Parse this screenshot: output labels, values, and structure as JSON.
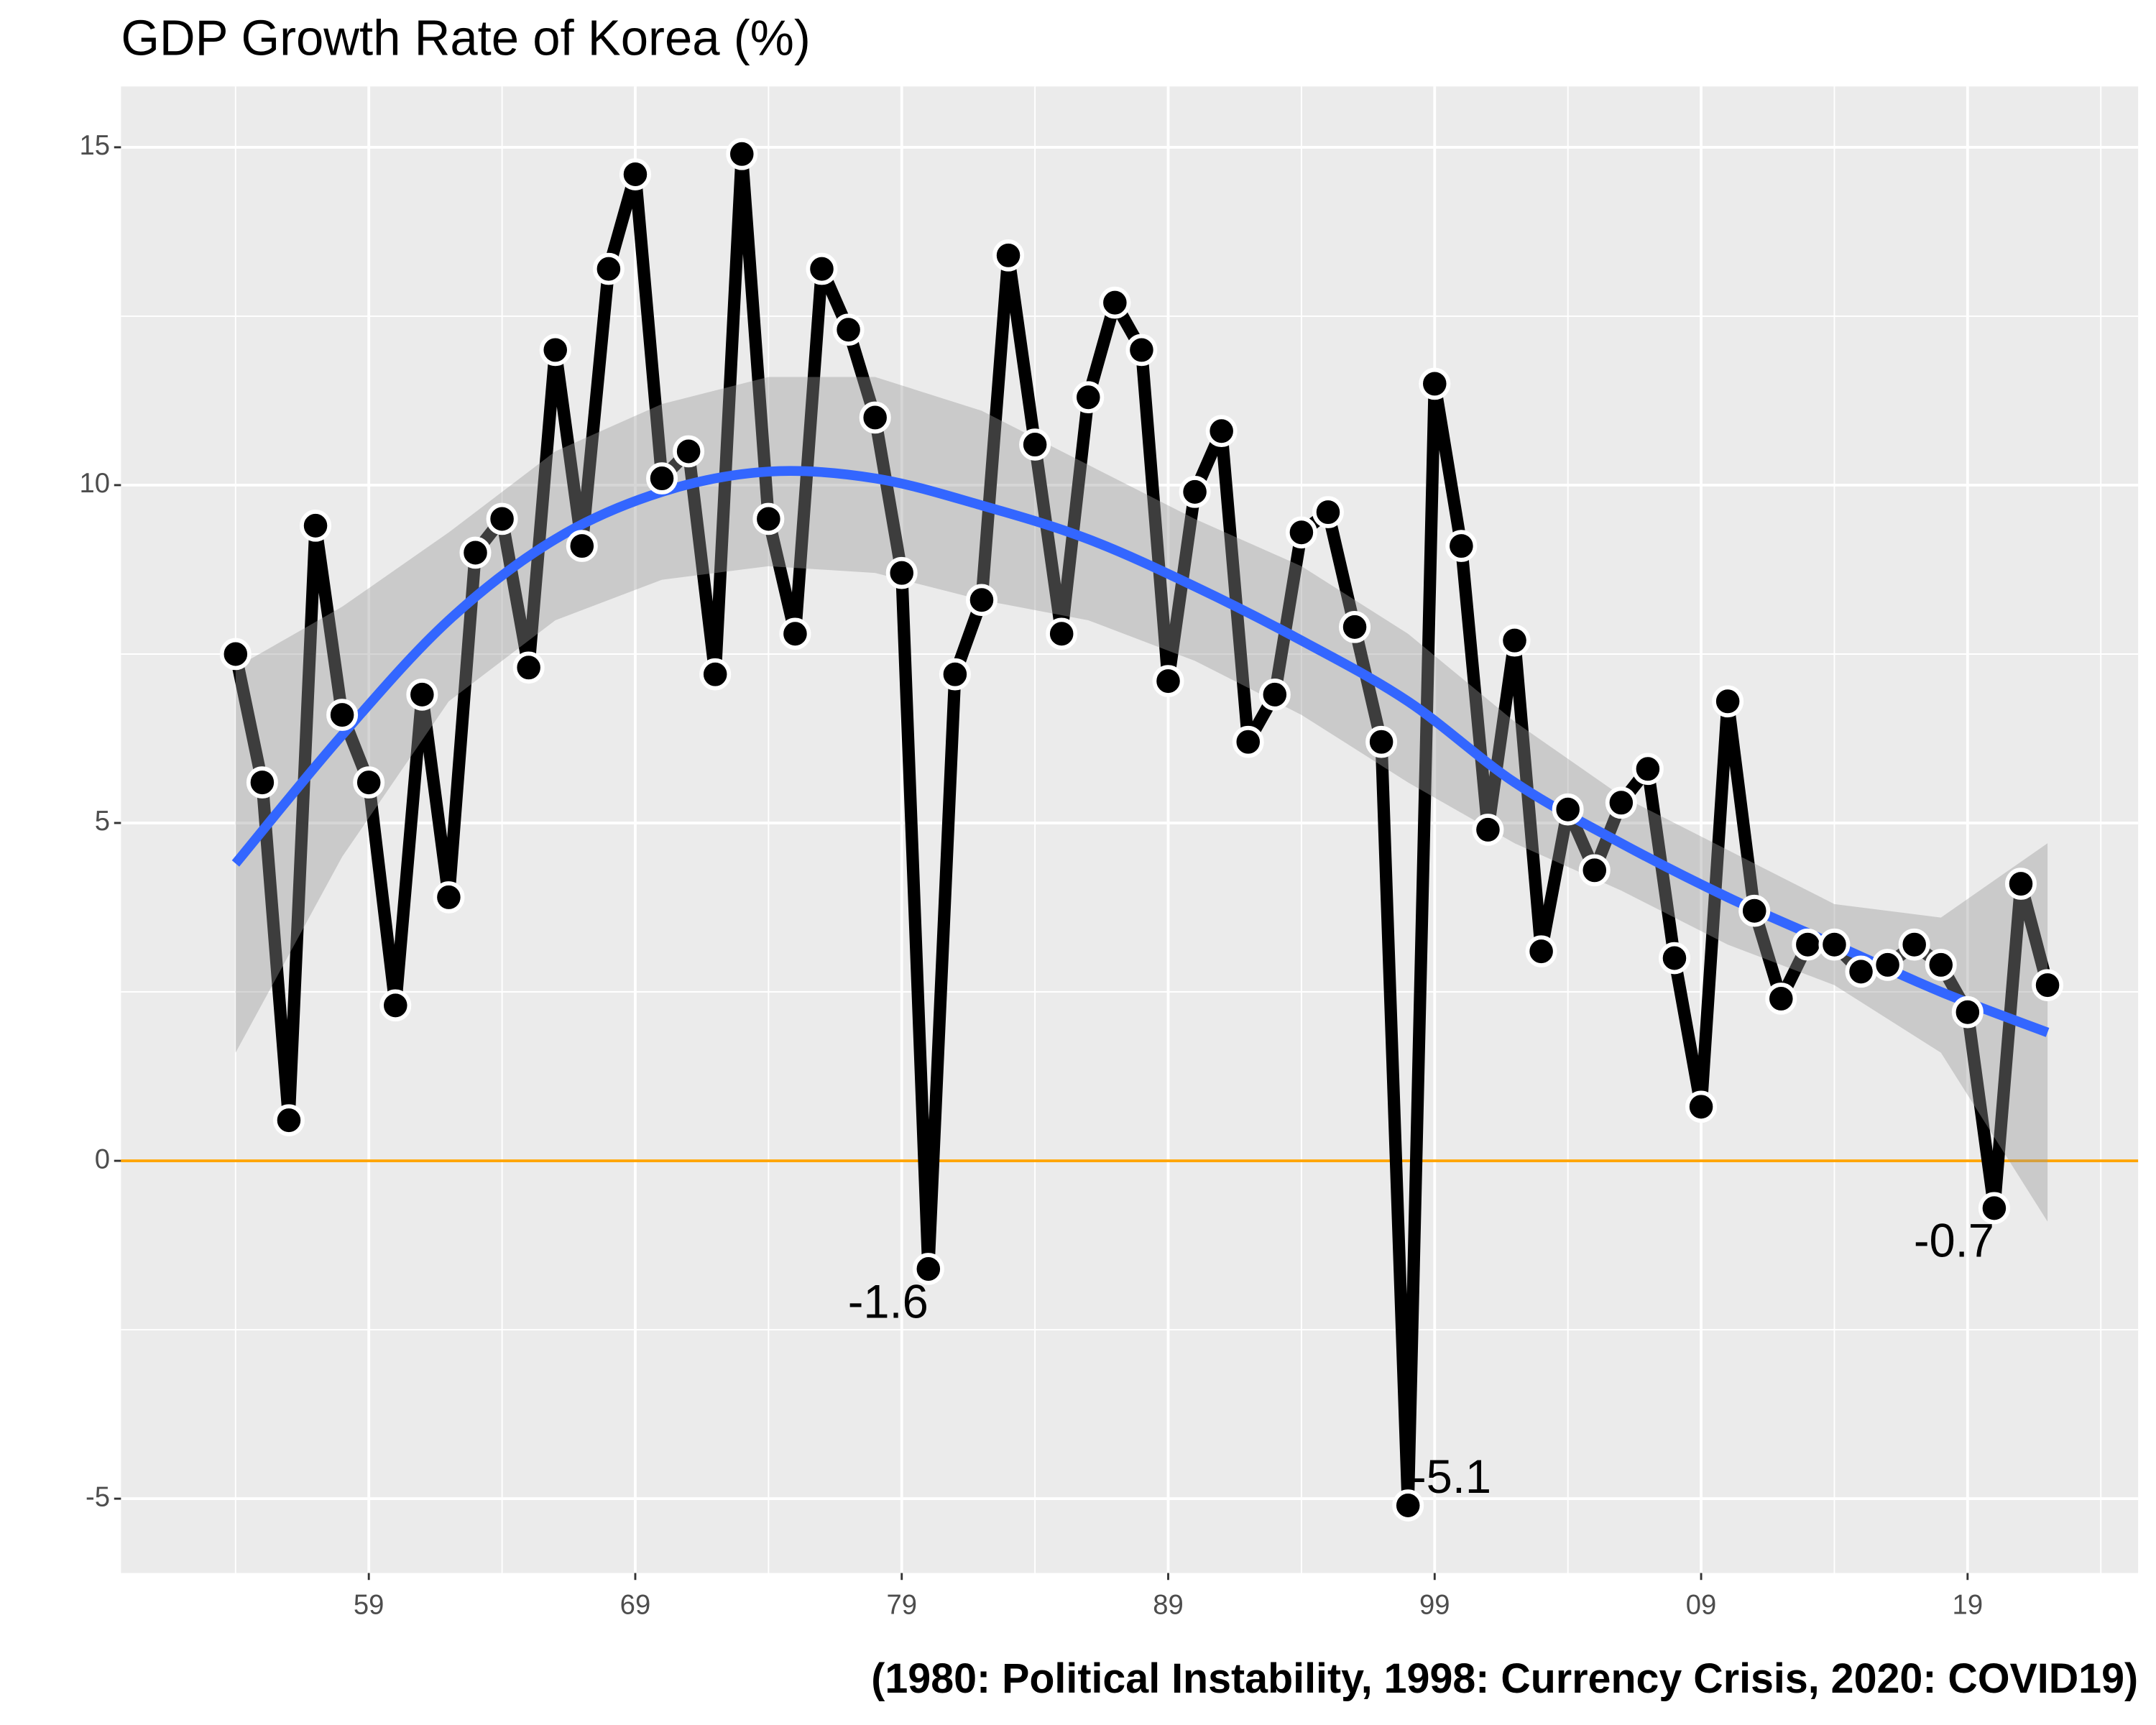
{
  "chart_data": {
    "type": "line",
    "title": "GDP Growth Rate of Korea (%)",
    "caption": "(1980: Political Instability, 1998: Currency Crisis, 2020: COVID19)",
    "x": [
      1954,
      1955,
      1956,
      1957,
      1958,
      1959,
      1960,
      1961,
      1962,
      1963,
      1964,
      1965,
      1966,
      1967,
      1968,
      1969,
      1970,
      1971,
      1972,
      1973,
      1974,
      1975,
      1976,
      1977,
      1978,
      1979,
      1980,
      1981,
      1982,
      1983,
      1984,
      1985,
      1986,
      1987,
      1988,
      1989,
      1990,
      1991,
      1992,
      1993,
      1994,
      1995,
      1996,
      1997,
      1998,
      1999,
      2000,
      2001,
      2002,
      2003,
      2004,
      2005,
      2006,
      2007,
      2008,
      2009,
      2010,
      2011,
      2012,
      2013,
      2014,
      2015,
      2016,
      2017,
      2018,
      2019,
      2020,
      2021,
      2022
    ],
    "series": [
      {
        "color": "#000000",
        "values": [
          7.5,
          5.6,
          0.6,
          9.4,
          6.6,
          5.6,
          2.3,
          6.9,
          3.9,
          9.0,
          9.5,
          7.3,
          12.0,
          9.1,
          13.2,
          14.6,
          10.1,
          10.5,
          7.2,
          14.9,
          9.5,
          7.8,
          13.2,
          12.3,
          11.0,
          8.7,
          -1.6,
          7.2,
          8.3,
          13.4,
          10.6,
          7.8,
          11.3,
          12.7,
          12.0,
          7.1,
          9.9,
          10.8,
          6.2,
          6.9,
          9.3,
          9.6,
          7.9,
          6.2,
          -5.1,
          11.5,
          9.1,
          4.9,
          7.7,
          3.1,
          5.2,
          4.3,
          5.3,
          5.8,
          3.0,
          0.8,
          6.8,
          3.7,
          2.4,
          3.2,
          3.2,
          2.8,
          2.9,
          3.2,
          2.9,
          2.2,
          -0.7,
          4.1,
          2.6
        ]
      }
    ],
    "smooth": {
      "color": "#3366ff",
      "band_color": "#999999",
      "x": [
        1954,
        1958,
        1962,
        1966,
        1970,
        1974,
        1978,
        1982,
        1986,
        1990,
        1994,
        1998,
        2002,
        2006,
        2010,
        2014,
        2018,
        2022
      ],
      "values": [
        4.4,
        6.3,
        8.0,
        9.2,
        9.9,
        10.2,
        10.1,
        9.7,
        9.2,
        8.5,
        7.7,
        6.8,
        5.6,
        4.7,
        3.9,
        3.2,
        2.5,
        1.9
      ],
      "lower": [
        1.6,
        4.5,
        6.8,
        8.0,
        8.6,
        8.8,
        8.7,
        8.3,
        8.0,
        7.4,
        6.6,
        5.6,
        4.7,
        4.0,
        3.2,
        2.6,
        1.6,
        -0.9
      ],
      "upper": [
        7.3,
        8.2,
        9.3,
        10.5,
        11.2,
        11.6,
        11.6,
        11.1,
        10.3,
        9.5,
        8.8,
        7.8,
        6.5,
        5.4,
        4.6,
        3.8,
        3.6,
        4.7
      ]
    },
    "annotations": [
      "-1.6",
      "-5.1",
      "-0.7"
    ],
    "hline": {
      "value": 0,
      "color": "#ffa500"
    },
    "xlim": [
      1949.7,
      2025.4
    ],
    "ylim": [
      -6.1,
      15.9
    ],
    "xticks": [
      {
        "value": 1959,
        "label": "59"
      },
      {
        "value": 1969,
        "label": "69"
      },
      {
        "value": 1979,
        "label": "79"
      },
      {
        "value": 1989,
        "label": "89"
      },
      {
        "value": 1999,
        "label": "99"
      },
      {
        "value": 2009,
        "label": "09"
      },
      {
        "value": 2019,
        "label": "19"
      }
    ],
    "yticks": [
      -5,
      0,
      5,
      10,
      15
    ],
    "grid": true,
    "background": "#ebebeb"
  }
}
